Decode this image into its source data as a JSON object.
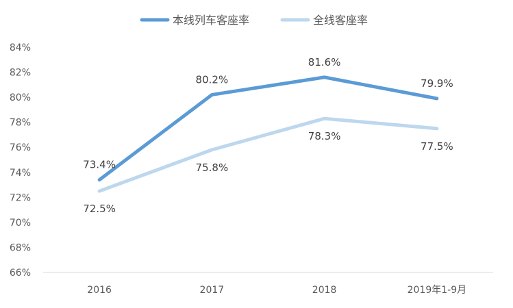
{
  "chart_data": {
    "type": "line",
    "categories": [
      "2016",
      "2017",
      "2018",
      "2019年1-9月"
    ],
    "ylim": [
      66,
      84
    ],
    "yticks": [
      "84%",
      "82%",
      "80%",
      "78%",
      "76%",
      "74%",
      "72%",
      "70%",
      "68%",
      "66%"
    ],
    "ytick_values": [
      84,
      82,
      80,
      78,
      76,
      74,
      72,
      70,
      68,
      66
    ],
    "legend_position": "top-center",
    "grid": false,
    "series": [
      {
        "name": "本线列车客座率",
        "values": [
          73.4,
          80.2,
          81.6,
          79.9
        ],
        "labels": [
          "73.4%",
          "80.2%",
          "81.6%",
          "79.9%"
        ],
        "color": "#5B9BD5"
      },
      {
        "name": "全线客座率",
        "values": [
          72.5,
          75.8,
          78.3,
          77.5
        ],
        "labels": [
          "72.5%",
          "75.8%",
          "78.3%",
          "77.5%"
        ],
        "color": "#BDD7EE"
      }
    ]
  }
}
